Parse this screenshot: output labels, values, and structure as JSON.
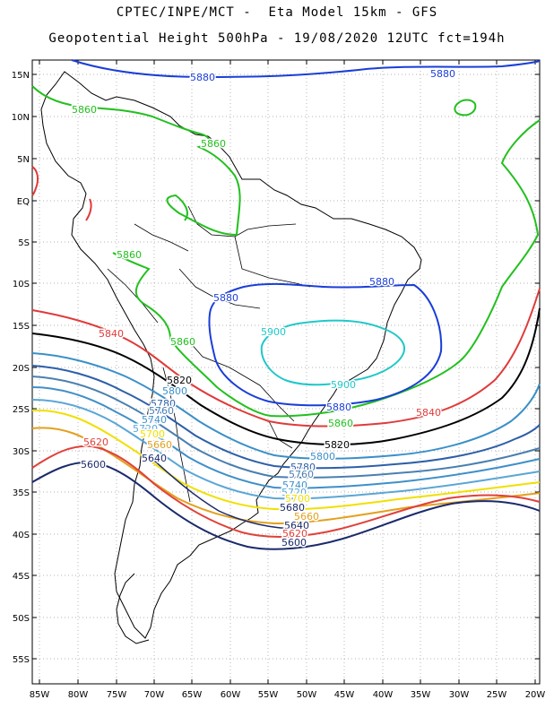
{
  "header": {
    "line1": "CPTEC/INPE/MCT -  Eta Model 15km - GFS",
    "line2": "Geopotential Height 500hPa - 19/08/2020 12UTC fct=194h"
  },
  "axes": {
    "lat_labels": [
      "15N",
      "10N",
      "5N",
      "EQ",
      "5S",
      "10S",
      "15S",
      "20S",
      "25S",
      "30S",
      "35S",
      "40S",
      "45S",
      "50S",
      "55S"
    ],
    "lon_labels": [
      "85W",
      "80W",
      "75W",
      "70W",
      "65W",
      "60W",
      "55W",
      "50W",
      "45W",
      "40W",
      "35W",
      "30W",
      "25W",
      "20W"
    ]
  },
  "contours": [
    {
      "level": "5600",
      "color": "#1b2a6b"
    },
    {
      "level": "5620",
      "color": "#e0413a"
    },
    {
      "level": "5660",
      "color": "#e3a01c"
    },
    {
      "level": "5700",
      "color": "#f0e000"
    },
    {
      "level": "5720",
      "color": "#5aa6d6"
    },
    {
      "level": "5740",
      "color": "#3f8fc9"
    },
    {
      "level": "5760",
      "color": "#4a7fb0"
    },
    {
      "level": "5780",
      "color": "#2d5fa8"
    },
    {
      "level": "5800",
      "color": "#3a90c8"
    },
    {
      "level": "5820",
      "color": "#000000"
    },
    {
      "level": "5840",
      "color": "#e03a3a"
    },
    {
      "level": "5860",
      "color": "#22c01e"
    },
    {
      "level": "5880",
      "color": "#1a3ed8"
    },
    {
      "level": "5900",
      "color": "#20c8c8"
    }
  ],
  "contour_labels": [
    {
      "text": "5880",
      "color": "#1a3ed8"
    },
    {
      "text": "5880",
      "color": "#1a3ed8"
    },
    {
      "text": "5860",
      "color": "#22c01e"
    },
    {
      "text": "5860",
      "color": "#22c01e"
    },
    {
      "text": "5860",
      "color": "#22c01e"
    },
    {
      "text": "5880",
      "color": "#1a3ed8"
    },
    {
      "text": "5880",
      "color": "#1a3ed8"
    },
    {
      "text": "5840",
      "color": "#e03a3a"
    },
    {
      "text": "5860",
      "color": "#22c01e"
    },
    {
      "text": "5900",
      "color": "#20c8c8"
    },
    {
      "text": "5900",
      "color": "#20c8c8"
    },
    {
      "text": "5820",
      "color": "#000000"
    },
    {
      "text": "5800",
      "color": "#3a90c8"
    },
    {
      "text": "5780",
      "color": "#2d5fa8"
    },
    {
      "text": "5760",
      "color": "#4a7fb0"
    },
    {
      "text": "5740",
      "color": "#3f8fc9"
    },
    {
      "text": "5720",
      "color": "#5aa6d6"
    },
    {
      "text": "5700",
      "color": "#f0e000"
    },
    {
      "text": "5660",
      "color": "#e3a01c"
    },
    {
      "text": "5620",
      "color": "#e0413a"
    },
    {
      "text": "5600",
      "color": "#1b2a6b"
    },
    {
      "text": "5640",
      "color": "#1b2a6b"
    },
    {
      "text": "5880",
      "color": "#1a3ed8"
    },
    {
      "text": "5860",
      "color": "#22c01e"
    },
    {
      "text": "5840",
      "color": "#e03a3a"
    },
    {
      "text": "5820",
      "color": "#000000"
    },
    {
      "text": "5800",
      "color": "#3a90c8"
    },
    {
      "text": "5780",
      "color": "#2d5fa8"
    },
    {
      "text": "5760",
      "color": "#4a7fb0"
    },
    {
      "text": "5740",
      "color": "#3f8fc9"
    },
    {
      "text": "5720",
      "color": "#5aa6d6"
    },
    {
      "text": "5700",
      "color": "#f0e000"
    },
    {
      "text": "5680",
      "color": "#1b2a6b"
    },
    {
      "text": "5660",
      "color": "#e3a01c"
    },
    {
      "text": "5640",
      "color": "#1b2a6b"
    },
    {
      "text": "5620",
      "color": "#e0413a"
    },
    {
      "text": "5600",
      "color": "#1b2a6b"
    }
  ]
}
